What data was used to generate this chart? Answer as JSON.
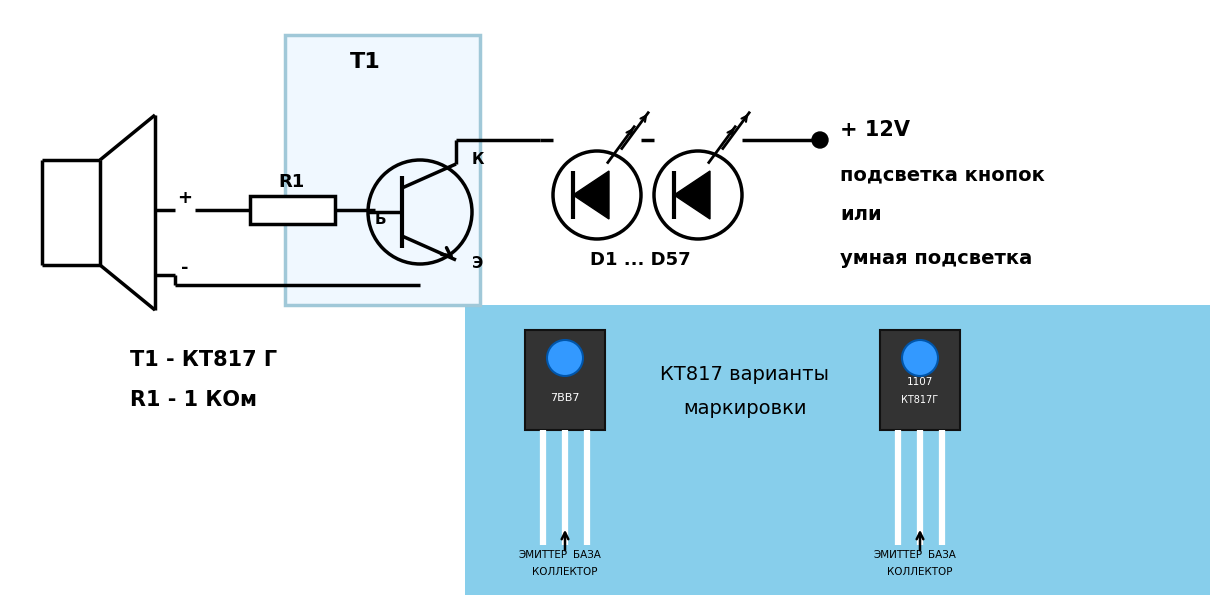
{
  "bg_color": "#ffffff",
  "light_blue": "#87ceeb",
  "transistor_box_color": "#a0c8d8",
  "transistor_box_fill": "#f0f8ff",
  "line_color": "#000000",
  "title_t1": "T1",
  "label_r1": "R1",
  "label_b": "Б",
  "label_k": "К",
  "label_e": "Э",
  "label_d1_d57": "D1 ... D57",
  "label_12v": "+ 12V",
  "label_text1": "подсветка кнопок",
  "label_text2": "или",
  "label_text3": "умная подсветка",
  "label_t1_desc": "T1 - КТ817 Г",
  "label_r1_desc": "R1 - 1 КОм",
  "label_kt817_var": "КТ817 варианты",
  "label_kt817_mark": "маркировки",
  "label_7bb7": "7BB7",
  "label_1107": "1107",
  "label_kt817g": "КТ817Г",
  "label_emitter1": "ЭМИТТЕР",
  "label_base1": "БАЗА",
  "label_collector1": "КОЛЛЕКТОР",
  "label_emitter2": "ЭМИТТЕР",
  "label_base2": "БАЗА",
  "label_collector2": "КОЛЛЕКТОР",
  "label_plus": "+",
  "label_minus": "-"
}
